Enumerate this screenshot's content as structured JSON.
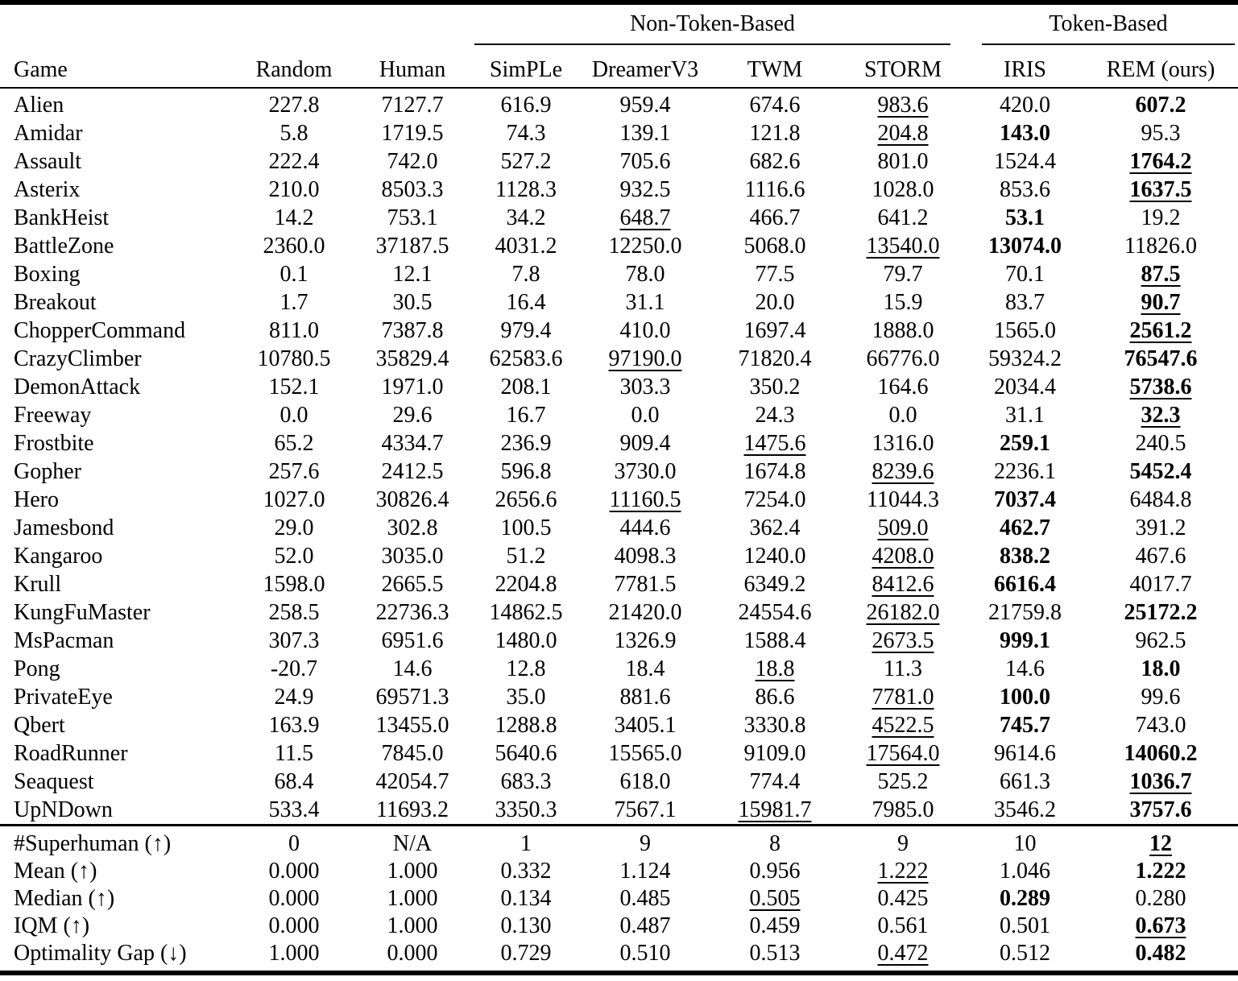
{
  "colors": {
    "text": "#000000",
    "background": "#ffffff",
    "rule": "#000000"
  },
  "table": {
    "group_headers": [
      {
        "label": "Non-Token-Based",
        "span": 4
      },
      {
        "label": "Token-Based",
        "span": 2
      }
    ],
    "columns": [
      "Game",
      "Random",
      "Human",
      "SimPLe",
      "DreamerV3",
      "TWM",
      "STORM",
      "IRIS",
      "REM (ours)"
    ],
    "style_legend": {
      "b": "bold",
      "u": "underline",
      "bu": "bold and underline"
    },
    "rows": [
      {
        "game": "Alien",
        "values": [
          "227.8",
          "7127.7",
          "616.9",
          "959.4",
          "674.6",
          "983.6",
          "420.0",
          "607.2"
        ],
        "styles": [
          "",
          "",
          "",
          "",
          "",
          "u",
          "",
          "b"
        ]
      },
      {
        "game": "Amidar",
        "values": [
          "5.8",
          "1719.5",
          "74.3",
          "139.1",
          "121.8",
          "204.8",
          "143.0",
          "95.3"
        ],
        "styles": [
          "",
          "",
          "",
          "",
          "",
          "u",
          "b",
          ""
        ]
      },
      {
        "game": "Assault",
        "values": [
          "222.4",
          "742.0",
          "527.2",
          "705.6",
          "682.6",
          "801.0",
          "1524.4",
          "1764.2"
        ],
        "styles": [
          "",
          "",
          "",
          "",
          "",
          "",
          "",
          "bu"
        ]
      },
      {
        "game": "Asterix",
        "values": [
          "210.0",
          "8503.3",
          "1128.3",
          "932.5",
          "1116.6",
          "1028.0",
          "853.6",
          "1637.5"
        ],
        "styles": [
          "",
          "",
          "",
          "",
          "",
          "",
          "",
          "bu"
        ]
      },
      {
        "game": "BankHeist",
        "values": [
          "14.2",
          "753.1",
          "34.2",
          "648.7",
          "466.7",
          "641.2",
          "53.1",
          "19.2"
        ],
        "styles": [
          "",
          "",
          "",
          "u",
          "",
          "",
          "b",
          ""
        ]
      },
      {
        "game": "BattleZone",
        "values": [
          "2360.0",
          "37187.5",
          "4031.2",
          "12250.0",
          "5068.0",
          "13540.0",
          "13074.0",
          "11826.0"
        ],
        "styles": [
          "",
          "",
          "",
          "",
          "",
          "u",
          "b",
          ""
        ]
      },
      {
        "game": "Boxing",
        "values": [
          "0.1",
          "12.1",
          "7.8",
          "78.0",
          "77.5",
          "79.7",
          "70.1",
          "87.5"
        ],
        "styles": [
          "",
          "",
          "",
          "",
          "",
          "",
          "",
          "bu"
        ]
      },
      {
        "game": "Breakout",
        "values": [
          "1.7",
          "30.5",
          "16.4",
          "31.1",
          "20.0",
          "15.9",
          "83.7",
          "90.7"
        ],
        "styles": [
          "",
          "",
          "",
          "",
          "",
          "",
          "",
          "bu"
        ]
      },
      {
        "game": "ChopperCommand",
        "values": [
          "811.0",
          "7387.8",
          "979.4",
          "410.0",
          "1697.4",
          "1888.0",
          "1565.0",
          "2561.2"
        ],
        "styles": [
          "",
          "",
          "",
          "",
          "",
          "",
          "",
          "bu"
        ]
      },
      {
        "game": "CrazyClimber",
        "values": [
          "10780.5",
          "35829.4",
          "62583.6",
          "97190.0",
          "71820.4",
          "66776.0",
          "59324.2",
          "76547.6"
        ],
        "styles": [
          "",
          "",
          "",
          "u",
          "",
          "",
          "",
          "b"
        ]
      },
      {
        "game": "DemonAttack",
        "values": [
          "152.1",
          "1971.0",
          "208.1",
          "303.3",
          "350.2",
          "164.6",
          "2034.4",
          "5738.6"
        ],
        "styles": [
          "",
          "",
          "",
          "",
          "",
          "",
          "",
          "bu"
        ]
      },
      {
        "game": "Freeway",
        "values": [
          "0.0",
          "29.6",
          "16.7",
          "0.0",
          "24.3",
          "0.0",
          "31.1",
          "32.3"
        ],
        "styles": [
          "",
          "",
          "",
          "",
          "",
          "",
          "",
          "bu"
        ]
      },
      {
        "game": "Frostbite",
        "values": [
          "65.2",
          "4334.7",
          "236.9",
          "909.4",
          "1475.6",
          "1316.0",
          "259.1",
          "240.5"
        ],
        "styles": [
          "",
          "",
          "",
          "",
          "u",
          "",
          "b",
          ""
        ]
      },
      {
        "game": "Gopher",
        "values": [
          "257.6",
          "2412.5",
          "596.8",
          "3730.0",
          "1674.8",
          "8239.6",
          "2236.1",
          "5452.4"
        ],
        "styles": [
          "",
          "",
          "",
          "",
          "",
          "u",
          "",
          "b"
        ]
      },
      {
        "game": "Hero",
        "values": [
          "1027.0",
          "30826.4",
          "2656.6",
          "11160.5",
          "7254.0",
          "11044.3",
          "7037.4",
          "6484.8"
        ],
        "styles": [
          "",
          "",
          "",
          "u",
          "",
          "",
          "b",
          ""
        ]
      },
      {
        "game": "Jamesbond",
        "values": [
          "29.0",
          "302.8",
          "100.5",
          "444.6",
          "362.4",
          "509.0",
          "462.7",
          "391.2"
        ],
        "styles": [
          "",
          "",
          "",
          "",
          "",
          "u",
          "b",
          ""
        ]
      },
      {
        "game": "Kangaroo",
        "values": [
          "52.0",
          "3035.0",
          "51.2",
          "4098.3",
          "1240.0",
          "4208.0",
          "838.2",
          "467.6"
        ],
        "styles": [
          "",
          "",
          "",
          "",
          "",
          "u",
          "b",
          ""
        ]
      },
      {
        "game": "Krull",
        "values": [
          "1598.0",
          "2665.5",
          "2204.8",
          "7781.5",
          "6349.2",
          "8412.6",
          "6616.4",
          "4017.7"
        ],
        "styles": [
          "",
          "",
          "",
          "",
          "",
          "u",
          "b",
          ""
        ]
      },
      {
        "game": "KungFuMaster",
        "values": [
          "258.5",
          "22736.3",
          "14862.5",
          "21420.0",
          "24554.6",
          "26182.0",
          "21759.8",
          "25172.2"
        ],
        "styles": [
          "",
          "",
          "",
          "",
          "",
          "u",
          "",
          "b"
        ]
      },
      {
        "game": "MsPacman",
        "values": [
          "307.3",
          "6951.6",
          "1480.0",
          "1326.9",
          "1588.4",
          "2673.5",
          "999.1",
          "962.5"
        ],
        "styles": [
          "",
          "",
          "",
          "",
          "",
          "u",
          "b",
          ""
        ]
      },
      {
        "game": "Pong",
        "values": [
          "-20.7",
          "14.6",
          "12.8",
          "18.4",
          "18.8",
          "11.3",
          "14.6",
          "18.0"
        ],
        "styles": [
          "",
          "",
          "",
          "",
          "u",
          "",
          "",
          "b"
        ]
      },
      {
        "game": "PrivateEye",
        "values": [
          "24.9",
          "69571.3",
          "35.0",
          "881.6",
          "86.6",
          "7781.0",
          "100.0",
          "99.6"
        ],
        "styles": [
          "",
          "",
          "",
          "",
          "",
          "u",
          "b",
          ""
        ]
      },
      {
        "game": "Qbert",
        "values": [
          "163.9",
          "13455.0",
          "1288.8",
          "3405.1",
          "3330.8",
          "4522.5",
          "745.7",
          "743.0"
        ],
        "styles": [
          "",
          "",
          "",
          "",
          "",
          "u",
          "b",
          ""
        ]
      },
      {
        "game": "RoadRunner",
        "values": [
          "11.5",
          "7845.0",
          "5640.6",
          "15565.0",
          "9109.0",
          "17564.0",
          "9614.6",
          "14060.2"
        ],
        "styles": [
          "",
          "",
          "",
          "",
          "",
          "u",
          "",
          "b"
        ]
      },
      {
        "game": "Seaquest",
        "values": [
          "68.4",
          "42054.7",
          "683.3",
          "618.0",
          "774.4",
          "525.2",
          "661.3",
          "1036.7"
        ],
        "styles": [
          "",
          "",
          "",
          "",
          "",
          "",
          "",
          "bu"
        ]
      },
      {
        "game": "UpNDown",
        "values": [
          "533.4",
          "11693.2",
          "3350.3",
          "7567.1",
          "15981.7",
          "7985.0",
          "3546.2",
          "3757.6"
        ],
        "styles": [
          "",
          "",
          "",
          "",
          "u",
          "",
          "",
          "b"
        ]
      }
    ],
    "summary_rows": [
      {
        "label": "#Superhuman (↑)",
        "values": [
          "0",
          "N/A",
          "1",
          "9",
          "8",
          "9",
          "10",
          "12"
        ],
        "styles": [
          "",
          "",
          "",
          "",
          "",
          "",
          "",
          "bu"
        ]
      },
      {
        "label": "Mean (↑)",
        "values": [
          "0.000",
          "1.000",
          "0.332",
          "1.124",
          "0.956",
          "1.222",
          "1.046",
          "1.222"
        ],
        "styles": [
          "",
          "",
          "",
          "",
          "",
          "u",
          "",
          "b"
        ]
      },
      {
        "label": "Median (↑)",
        "values": [
          "0.000",
          "1.000",
          "0.134",
          "0.485",
          "0.505",
          "0.425",
          "0.289",
          "0.280"
        ],
        "styles": [
          "",
          "",
          "",
          "",
          "u",
          "",
          "b",
          ""
        ]
      },
      {
        "label": "IQM (↑)",
        "values": [
          "0.000",
          "1.000",
          "0.130",
          "0.487",
          "0.459",
          "0.561",
          "0.501",
          "0.673"
        ],
        "styles": [
          "",
          "",
          "",
          "",
          "",
          "",
          "",
          "bu"
        ]
      },
      {
        "label": "Optimality Gap (↓)",
        "values": [
          "1.000",
          "0.000",
          "0.729",
          "0.510",
          "0.513",
          "0.472",
          "0.512",
          "0.482"
        ],
        "styles": [
          "",
          "",
          "",
          "",
          "",
          "u",
          "",
          "b"
        ]
      }
    ]
  }
}
